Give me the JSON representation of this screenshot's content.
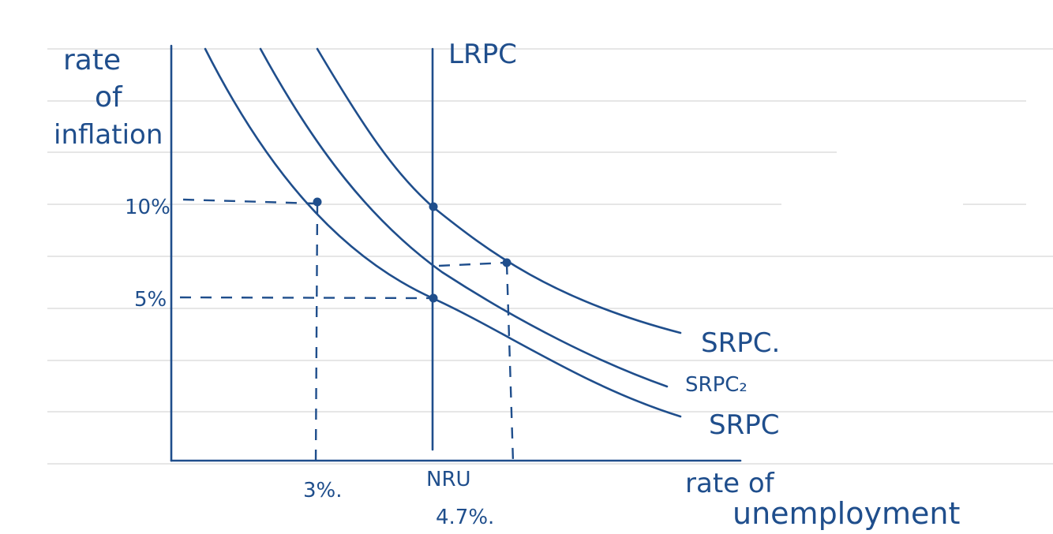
{
  "diagram": {
    "y_axis_label": [
      "rate",
      "of",
      "inflation"
    ],
    "x_axis_label": [
      "rate of",
      "unemployment"
    ],
    "y_ticks": [
      "10%",
      "5%"
    ],
    "x_ticks": {
      "first": "3%.",
      "nru": "NRU",
      "nru_value": "4.7%."
    },
    "lrpc_label": "LRPC",
    "curves": [
      "SRPC.",
      "SRPC₂",
      "SRPC"
    ],
    "ink_color": "#1f4e8c"
  }
}
